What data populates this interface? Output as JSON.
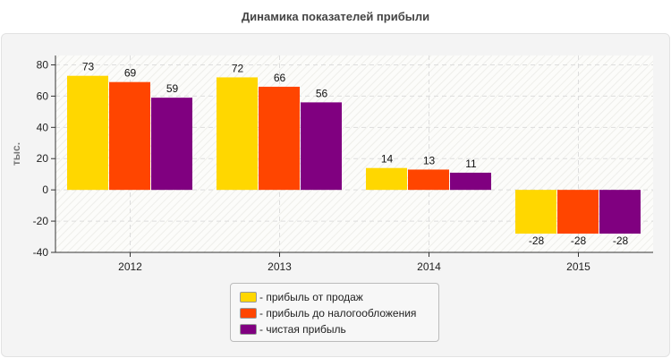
{
  "chart_data": {
    "type": "bar",
    "title": "Динамика показателей прибыли",
    "ylabel": "тыс.",
    "xlabel": "",
    "categories": [
      "2012",
      "2013",
      "2014",
      "2015"
    ],
    "ylim": [
      -40,
      86
    ],
    "yticks": [
      "80",
      "60",
      "40",
      "20",
      "0",
      "-20",
      "-40"
    ],
    "grid": true,
    "legend_position": "bottom",
    "series": [
      {
        "name": "- прибыль от продаж",
        "color": "#FFD700",
        "values": [
          73,
          72,
          14,
          -28
        ]
      },
      {
        "name": "- прибыль до налогообложения",
        "color": "#FF4500",
        "values": [
          69,
          66,
          13,
          -28
        ]
      },
      {
        "name": "- чистая прибыль",
        "color": "#800080",
        "values": [
          59,
          56,
          11,
          -28
        ]
      }
    ]
  }
}
